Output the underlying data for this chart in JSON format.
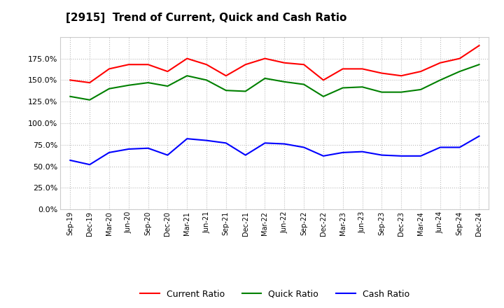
{
  "title": "[2915]  Trend of Current, Quick and Cash Ratio",
  "x_labels": [
    "Sep-19",
    "Dec-19",
    "Mar-20",
    "Jun-20",
    "Sep-20",
    "Dec-20",
    "Mar-21",
    "Jun-21",
    "Sep-21",
    "Dec-21",
    "Mar-22",
    "Jun-22",
    "Sep-22",
    "Dec-22",
    "Mar-23",
    "Jun-23",
    "Sep-23",
    "Dec-23",
    "Mar-24",
    "Jun-24",
    "Sep-24",
    "Dec-24"
  ],
  "current_ratio": [
    150.0,
    147.0,
    163.0,
    168.0,
    168.0,
    160.0,
    175.0,
    168.0,
    155.0,
    168.0,
    175.0,
    170.0,
    168.0,
    150.0,
    163.0,
    163.0,
    158.0,
    155.0,
    160.0,
    170.0,
    175.0,
    190.0
  ],
  "quick_ratio": [
    131.0,
    127.0,
    140.0,
    144.0,
    147.0,
    143.0,
    155.0,
    150.0,
    138.0,
    137.0,
    152.0,
    148.0,
    145.0,
    131.0,
    141.0,
    142.0,
    136.0,
    136.0,
    139.0,
    150.0,
    160.0,
    168.0
  ],
  "cash_ratio": [
    57.0,
    52.0,
    66.0,
    70.0,
    71.0,
    63.0,
    82.0,
    80.0,
    77.0,
    63.0,
    77.0,
    76.0,
    72.0,
    62.0,
    66.0,
    67.0,
    63.0,
    62.0,
    62.0,
    72.0,
    72.0,
    85.0
  ],
  "current_color": "#ff0000",
  "quick_color": "#008000",
  "cash_color": "#0000ff",
  "ylim": [
    0,
    200
  ],
  "yticks": [
    0,
    25,
    50,
    75,
    100,
    125,
    150,
    175
  ],
  "background_color": "#ffffff",
  "grid_color": "#bbbbbb"
}
